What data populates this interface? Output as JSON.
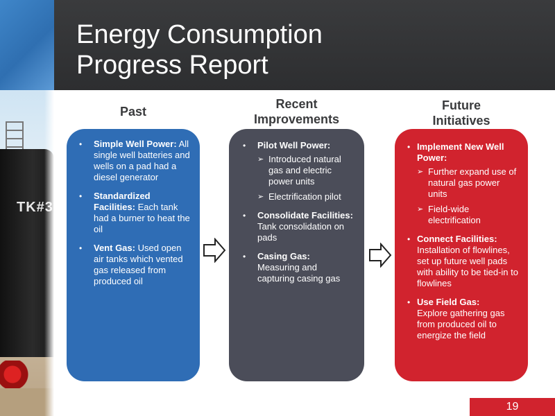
{
  "title": {
    "line1": "Energy Consumption",
    "line2": "Progress Report"
  },
  "photo": {
    "tank_label": "TK#3"
  },
  "columns": {
    "past": {
      "heading": "Past"
    },
    "recent": {
      "heading_line1": "Recent",
      "heading_line2": "Improvements"
    },
    "future": {
      "heading_line1": "Future",
      "heading_line2": "Initiatives"
    }
  },
  "past": {
    "items": [
      {
        "bold": "Simple Well Power:",
        "text": " All single well batteries and wells on a pad had a diesel generator"
      },
      {
        "bold": "Standardized Facilities:",
        "text": " Each tank had a burner to heat the oil"
      },
      {
        "bold": "Vent Gas:",
        "text": " Used open air tanks which vented gas released from produced oil"
      }
    ]
  },
  "recent": {
    "items": [
      {
        "bold": "Pilot Well Power:",
        "text": "",
        "sub": [
          "Introduced natural gas and electric power units",
          "Electrification pilot"
        ]
      },
      {
        "bold": "Consolidate Facilities:",
        "text": " Tank consolidation on pads"
      },
      {
        "bold": "Casing Gas:",
        "text": " Measuring and capturing casing gas"
      }
    ]
  },
  "future": {
    "items": [
      {
        "bold": "Implement New Well Power:",
        "text": "",
        "sub": [
          "Further expand use of natural gas power units",
          "Field-wide electrification"
        ]
      },
      {
        "bold": "Connect Facilities:",
        "text": " Installation of flowlines, set up future well pads with ability to be tied-in to flowlines"
      },
      {
        "bold": "Use Field Gas:",
        "text": " Explore gathering gas from produced oil to energize the field"
      }
    ]
  },
  "page_number": "19",
  "colors": {
    "header": "#2d2e30",
    "past_panel": "#2f6db5",
    "recent_panel": "#4b4d59",
    "future_panel": "#d1232e",
    "accent_red": "#d1232e"
  },
  "icons": [
    "arrow-right-icon",
    "arrow-right-icon"
  ]
}
